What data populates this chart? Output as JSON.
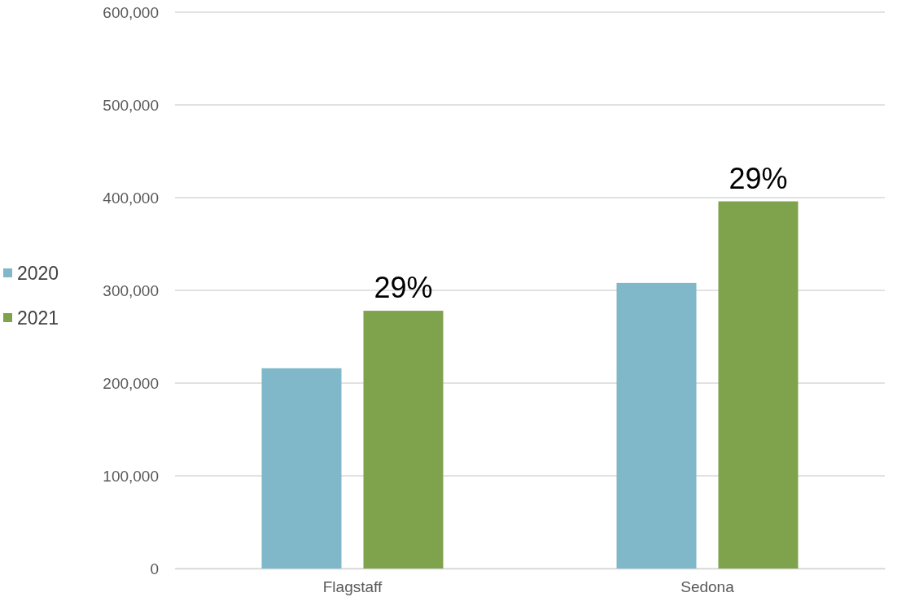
{
  "chart_data": {
    "type": "bar",
    "categories": [
      "Flagstaff",
      "Sedona"
    ],
    "series": [
      {
        "name": "2020",
        "color": "#80b8c9",
        "values": [
          216000,
          308000
        ]
      },
      {
        "name": "2021",
        "color": "#7fa24d",
        "values": [
          278000,
          396000
        ]
      }
    ],
    "ylim": [
      0,
      600000
    ],
    "yticks": [
      {
        "value": 0,
        "label": "0"
      },
      {
        "value": 100000,
        "label": "100,000"
      },
      {
        "value": 200000,
        "label": "200,000"
      },
      {
        "value": 300000,
        "label": "300,000"
      },
      {
        "value": 400000,
        "label": "400,000"
      },
      {
        "value": 500000,
        "label": "500,000"
      },
      {
        "value": 600000,
        "label": "600,000"
      }
    ],
    "grid": "y",
    "legend": "left",
    "annotations": [
      "29%",
      "29%"
    ]
  }
}
